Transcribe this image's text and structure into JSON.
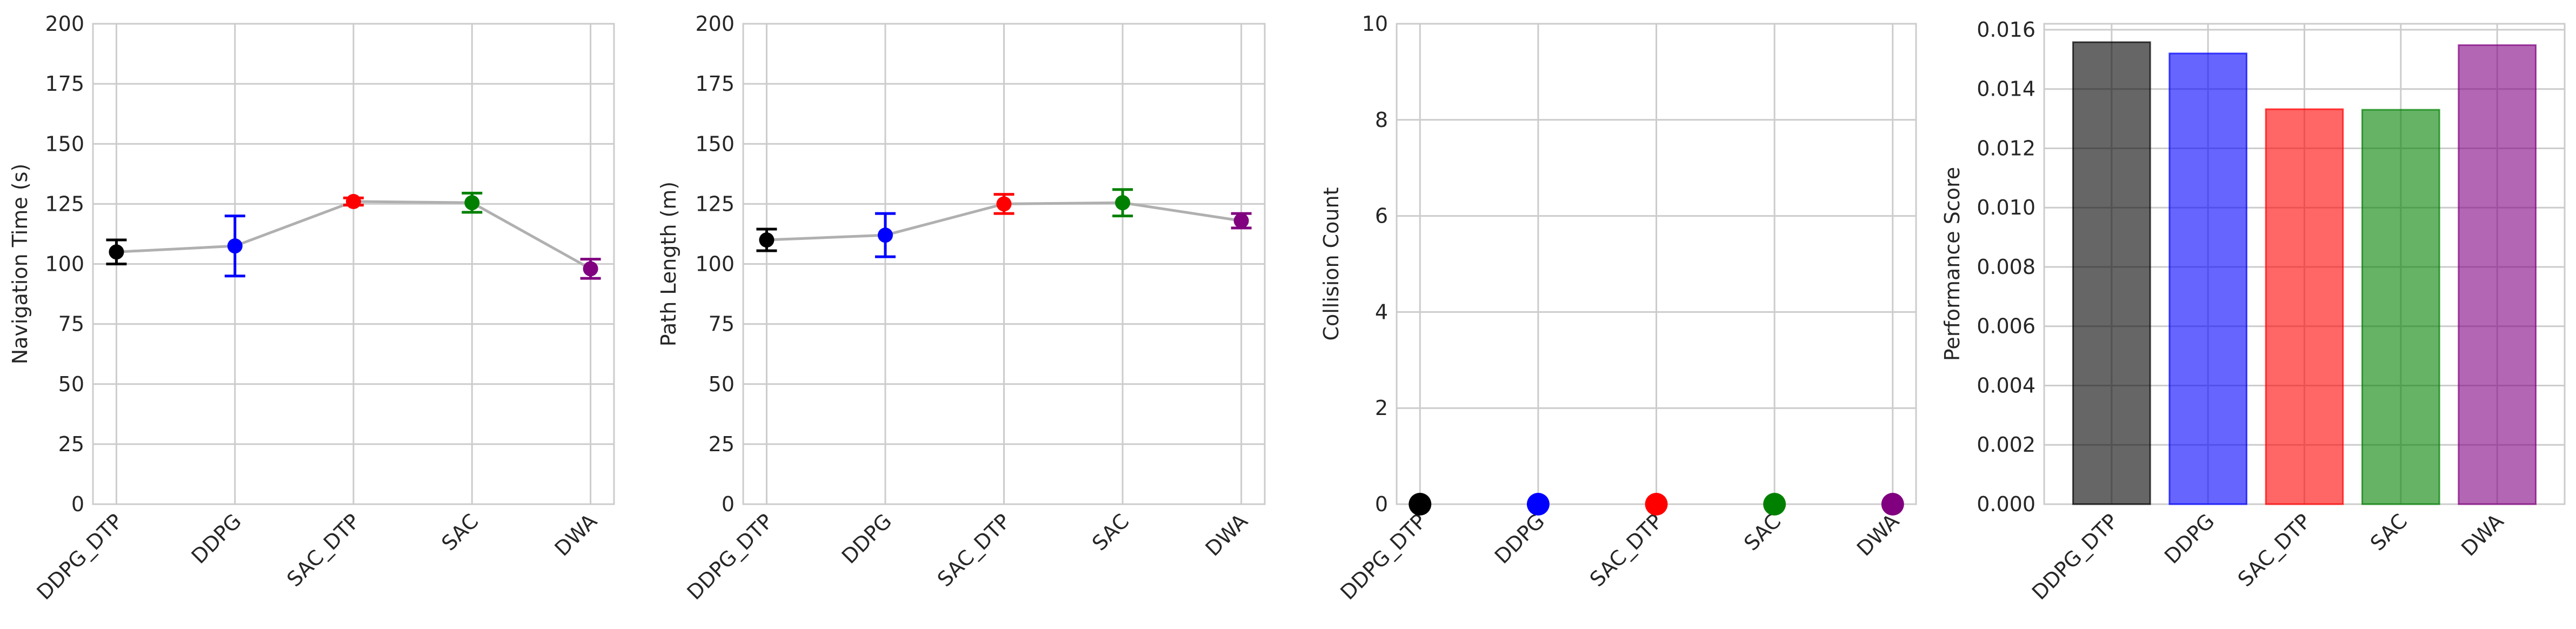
{
  "chart_data": [
    {
      "type": "line",
      "ylabel": "Navigation Time (s)",
      "xlabel": "",
      "categories": [
        "DDPG_DTP",
        "DDPG",
        "SAC_DTP",
        "SAC",
        "DWA"
      ],
      "values": [
        105,
        107.5,
        126,
        125.5,
        98
      ],
      "errors": [
        5,
        12.5,
        1.5,
        4,
        4
      ],
      "point_colors": [
        "#000000",
        "#0000ff",
        "#ff0000",
        "#008000",
        "#800080"
      ],
      "ylim": [
        0,
        200
      ],
      "yticks": [
        0,
        25,
        50,
        75,
        100,
        125,
        150,
        175,
        200
      ],
      "ytick_labels": [
        "0",
        "25",
        "50",
        "75",
        "100",
        "125",
        "150",
        "175",
        "200"
      ],
      "grid": true
    },
    {
      "type": "line",
      "ylabel": "Path Length (m)",
      "xlabel": "",
      "categories": [
        "DDPG_DTP",
        "DDPG",
        "SAC_DTP",
        "SAC",
        "DWA"
      ],
      "values": [
        110,
        112,
        125,
        125.5,
        118
      ],
      "errors": [
        4.5,
        9,
        4,
        5.5,
        3
      ],
      "point_colors": [
        "#000000",
        "#0000ff",
        "#ff0000",
        "#008000",
        "#800080"
      ],
      "ylim": [
        0,
        200
      ],
      "yticks": [
        0,
        25,
        50,
        75,
        100,
        125,
        150,
        175,
        200
      ],
      "ytick_labels": [
        "0",
        "25",
        "50",
        "75",
        "100",
        "125",
        "150",
        "175",
        "200"
      ],
      "grid": true
    },
    {
      "type": "scatter",
      "ylabel": "Collision Count",
      "xlabel": "",
      "categories": [
        "DDPG_DTP",
        "DDPG",
        "SAC_DTP",
        "SAC",
        "DWA"
      ],
      "values": [
        0,
        0,
        0,
        0,
        0
      ],
      "point_colors": [
        "#000000",
        "#0000ff",
        "#ff0000",
        "#008000",
        "#800080"
      ],
      "ylim": [
        0,
        10
      ],
      "yticks": [
        0,
        2,
        4,
        6,
        8,
        10
      ],
      "ytick_labels": [
        "0",
        "2",
        "4",
        "6",
        "8",
        "10"
      ],
      "grid": true
    },
    {
      "type": "bar",
      "ylabel": "Performance Score",
      "xlabel": "",
      "categories": [
        "DDPG_DTP",
        "DDPG",
        "SAC_DTP",
        "SAC",
        "DWA"
      ],
      "values": [
        0.01558,
        0.0152,
        0.01332,
        0.0133,
        0.01548
      ],
      "bar_colors": [
        "#000000",
        "#0000ff",
        "#ff0000",
        "#008000",
        "#800080"
      ],
      "ylim": [
        0,
        0.0162
      ],
      "yticks": [
        0,
        0.002,
        0.004,
        0.006,
        0.008,
        0.01,
        0.012,
        0.014,
        0.016
      ],
      "ytick_labels": [
        "0.000",
        "0.002",
        "0.004",
        "0.006",
        "0.008",
        "0.010",
        "0.012",
        "0.014",
        "0.016"
      ],
      "grid": true
    }
  ],
  "colors": {
    "grid": "#cccccc",
    "spine": "#cccccc",
    "connector_line": "#b0b0b0",
    "text": "#262626"
  }
}
